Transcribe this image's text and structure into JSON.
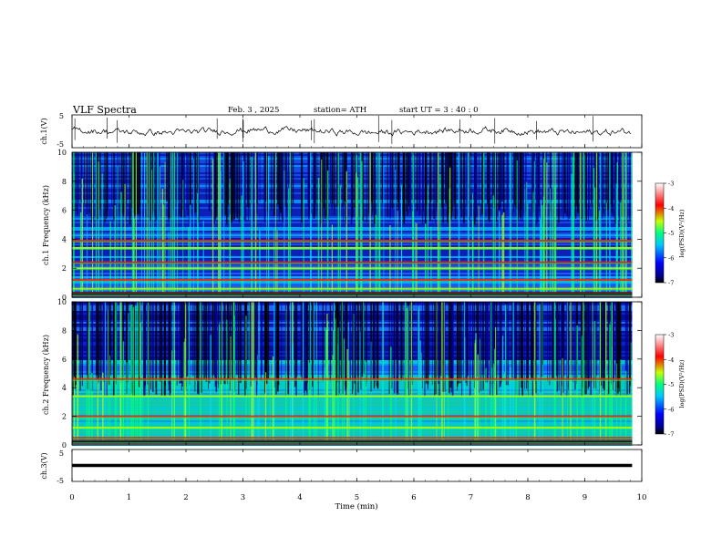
{
  "header": {
    "title": "VLF  Spectra",
    "date": "Feb. 3  , 2025",
    "station": "station= ATH",
    "start": "start  UT  =   3 : 40 : 0"
  },
  "chart_data": [
    {
      "type": "line",
      "panel": "ch1-waveform",
      "ylabel": "ch.1(V)",
      "ylim": [
        -5,
        5
      ],
      "yticks": [
        "5",
        "-5"
      ],
      "xlim": [
        0,
        10
      ],
      "color": "#000000"
    },
    {
      "type": "heatmap",
      "panel": "ch1-spectrogram",
      "ylabel": "ch.1 Frequency  (kHz)",
      "ylim": [
        0,
        10
      ],
      "yticks": [
        "10",
        "8",
        "6",
        "4",
        "2",
        "0"
      ],
      "xlim": [
        0,
        10
      ],
      "xmax_data": 9.83,
      "colorbar": {
        "label": "log(PSD)(V²/Hz)",
        "range": [
          -7,
          -3
        ],
        "ticks": [
          "-3",
          "-4",
          "-5",
          "-6",
          "-7"
        ],
        "colors": [
          "#000000",
          "#0000ff",
          "#00c8ff",
          "#00ff80",
          "#c8ff00",
          "#ff0000",
          "#ff9090",
          "#ffffff"
        ]
      },
      "bands_khz": [
        0.3,
        0.6,
        1.2,
        2.0,
        2.4,
        3.4,
        3.9
      ]
    },
    {
      "type": "heatmap",
      "panel": "ch2-spectrogram",
      "ylabel": "ch.2 Frequency  (kHz)",
      "ylim": [
        0,
        10
      ],
      "yticks": [
        "10",
        "8",
        "6",
        "4",
        "2",
        "0"
      ],
      "xlim": [
        0,
        10
      ],
      "xmax_data": 9.83,
      "colorbar": {
        "label": "log(PSD)(V²/Hz)",
        "range": [
          -7,
          -3
        ],
        "ticks": [
          "-3",
          "-4",
          "-5",
          "-6",
          "-7"
        ],
        "colors": [
          "#000000",
          "#0000ff",
          "#00c8ff",
          "#00ff80",
          "#c8ff00",
          "#ff0000",
          "#ff9090",
          "#ffffff"
        ]
      },
      "bands_khz": [
        0.5,
        1.2,
        2.0,
        3.4,
        4.6
      ]
    },
    {
      "type": "line",
      "panel": "ch3-waveform",
      "ylabel": "ch.3(V)",
      "ylim": [
        -5,
        5
      ],
      "yticks": [
        "5",
        "-5"
      ],
      "xlim": [
        0,
        10
      ],
      "constant_value": 0,
      "color": "#000000"
    }
  ],
  "xaxis": {
    "label": "Time  (min)",
    "ticks": [
      "0",
      "1",
      "2",
      "3",
      "4",
      "5",
      "6",
      "7",
      "8",
      "9",
      "10"
    ]
  }
}
